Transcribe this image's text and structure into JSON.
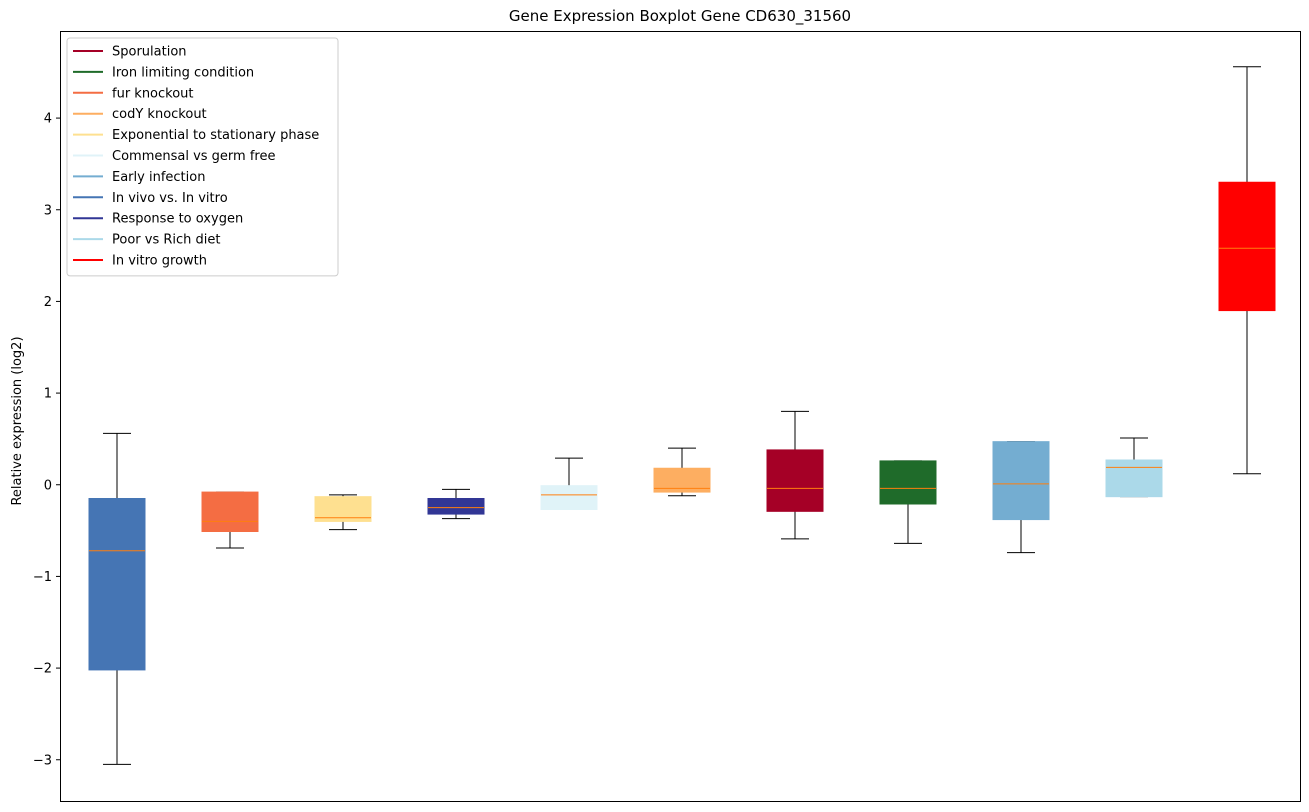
{
  "chart_data": {
    "type": "boxplot",
    "title": "Gene Expression Boxplot Gene CD630_31560",
    "xlabel": "",
    "ylabel": "Relative expression (log2)",
    "ylim": [
      -3.45,
      4.95
    ],
    "yticks": [
      -3,
      -2,
      -1,
      0,
      1,
      2,
      3,
      4
    ],
    "ytick_labels": [
      "−3",
      "−2",
      "−1",
      "0",
      "1",
      "2",
      "3",
      "4"
    ],
    "grid": false,
    "legend_position": "top-left",
    "legend": [
      {
        "label": "Sporulation",
        "color": "#a50026"
      },
      {
        "label": "Iron limiting condition",
        "color": "#1f6b2a"
      },
      {
        "label": "fur knockout",
        "color": "#f46d43"
      },
      {
        "label": "codY knockout",
        "color": "#fdae61"
      },
      {
        "label": "Exponential to stationary phase",
        "color": "#fee090"
      },
      {
        "label": "Commensal vs germ free",
        "color": "#e0f3f8"
      },
      {
        "label": "Early infection",
        "color": "#74add1"
      },
      {
        "label": "In vivo vs. In vitro",
        "color": "#4575b4"
      },
      {
        "label": "Response to oxygen",
        "color": "#313695"
      },
      {
        "label": "Poor vs Rich diet",
        "color": "#abd9e9"
      },
      {
        "label": "In vitro growth",
        "color": "#ff0000"
      }
    ],
    "series": [
      {
        "color": "#4575b4",
        "whislo": -3.05,
        "q1": -2.02,
        "med": -0.72,
        "q3": -0.15,
        "whishi": 0.56
      },
      {
        "color": "#f46d43",
        "whislo": -0.69,
        "q1": -0.51,
        "med": -0.4,
        "q3": -0.08,
        "whishi": -0.08
      },
      {
        "color": "#fee090",
        "whislo": -0.49,
        "q1": -0.4,
        "med": -0.36,
        "q3": -0.13,
        "whishi": -0.11
      },
      {
        "color": "#313695",
        "whislo": -0.37,
        "q1": -0.32,
        "med": -0.25,
        "q3": -0.15,
        "whishi": -0.05
      },
      {
        "color": "#e0f3f8",
        "whislo": -0.27,
        "q1": -0.27,
        "med": -0.11,
        "q3": -0.01,
        "whishi": 0.29
      },
      {
        "color": "#fdae61",
        "whislo": -0.12,
        "q1": -0.08,
        "med": -0.04,
        "q3": 0.18,
        "whishi": 0.4
      },
      {
        "color": "#a50026",
        "whislo": -0.59,
        "q1": -0.29,
        "med": -0.04,
        "q3": 0.38,
        "whishi": 0.8
      },
      {
        "color": "#1f6b2a",
        "whislo": -0.64,
        "q1": -0.21,
        "med": -0.04,
        "q3": 0.26,
        "whishi": 0.26
      },
      {
        "color": "#74add1",
        "whislo": -0.74,
        "q1": -0.38,
        "med": 0.01,
        "q3": 0.47,
        "whishi": 0.47
      },
      {
        "color": "#abd9e9",
        "whislo": -0.13,
        "q1": -0.13,
        "med": 0.19,
        "q3": 0.27,
        "whishi": 0.51
      },
      {
        "color": "#ff0000",
        "whislo": 0.12,
        "q1": 1.9,
        "med": 2.58,
        "q3": 3.3,
        "whishi": 4.56
      }
    ],
    "median_color": "#ff7f0e"
  }
}
